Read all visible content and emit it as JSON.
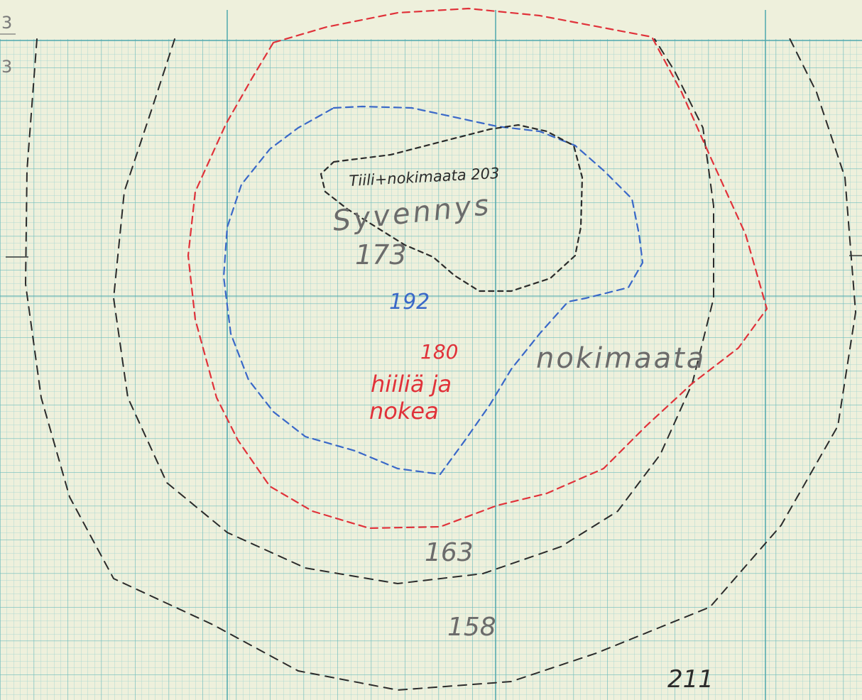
{
  "sheet": {
    "corner_labels": [
      "3",
      "3"
    ],
    "paper_color": "#eef0dc",
    "grid_color": "#7fc4c2",
    "grid_major_color": "#4fa8ad"
  },
  "annotations": {
    "tiili_label": "Tiili+nokimaata 203",
    "syvennys_label": "Syvennys",
    "depth_173": "173",
    "depth_192": "192",
    "depth_180": "180",
    "hiilia_line1": "hiiliä ja",
    "hiilia_line2": "nokea",
    "nokimaata_label": "nokimaata",
    "depth_163": "163",
    "depth_158": "158",
    "depth_211": "211"
  },
  "colors": {
    "black_pencil": "#2b2b2b",
    "red_pencil": "#e0323a",
    "blue_pencil": "#3a68c8",
    "gray_pencil": "#6b6b6b"
  }
}
